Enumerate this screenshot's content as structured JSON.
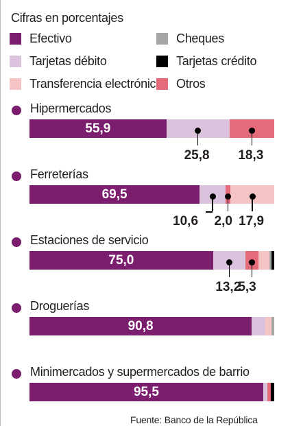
{
  "subtitle": "Cifras en porcentajes",
  "source": "Fuente: Banco de la República",
  "legend": [
    {
      "label": "Efectivo",
      "color": "#7a1e6d"
    },
    {
      "label": "Cheques",
      "color": "#a7a7a7"
    },
    {
      "label": "Tarjetas débito",
      "color": "#dcc3dd"
    },
    {
      "label": "Tarjetas crédito",
      "color": "#000000"
    },
    {
      "label": "Transferencia electrónica",
      "color": "#f5c5c6"
    },
    {
      "label": "Otros",
      "color": "#e56b7a"
    }
  ],
  "chart_data": {
    "type": "bar",
    "stacked": true,
    "orientation": "horizontal",
    "unit": "%",
    "xlim": [
      0,
      100
    ],
    "series_order": [
      "Efectivo",
      "Tarjetas débito",
      "Tarjetas crédito",
      "Cheques",
      "Transferencia electrónica",
      "Otros"
    ],
    "colors": {
      "Efectivo": "#7a1e6d",
      "Tarjetas débito": "#dcc3dd",
      "Tarjetas crédito": "#000000",
      "Cheques": "#a7a7a7",
      "Transferencia electrónica": "#f5c5c6",
      "Otros": "#e56b7a"
    },
    "categories": [
      {
        "name": "Hipermercados",
        "label": "55,9",
        "segments": [
          {
            "series": "Efectivo",
            "value": 55.9
          },
          {
            "series": "Tarjetas débito",
            "value": 25.8,
            "label": "25,8"
          },
          {
            "series": "Otros",
            "value": 18.3,
            "label": "18,3"
          }
        ]
      },
      {
        "name": "Ferreterías",
        "label": "69,5",
        "segments": [
          {
            "series": "Efectivo",
            "value": 69.5
          },
          {
            "series": "Tarjetas débito",
            "value": 10.6,
            "label": "10,6"
          },
          {
            "series": "Otros",
            "value": 2.0,
            "label": "2,0"
          },
          {
            "series": "Transferencia electrónica",
            "value": 17.9,
            "label": "17,9"
          }
        ]
      },
      {
        "name": "Estaciones de servicio",
        "label": "75,0",
        "segments": [
          {
            "series": "Efectivo",
            "value": 75.0
          },
          {
            "series": "Tarjetas débito",
            "value": 13.2,
            "label": "13,2"
          },
          {
            "series": "Otros",
            "value": 5.3,
            "label": "5,3"
          },
          {
            "series": "Transferencia electrónica",
            "value": 4.5
          },
          {
            "series": "Cheques",
            "value": 1.0
          },
          {
            "series": "Tarjetas crédito",
            "value": 1.0
          }
        ]
      },
      {
        "name": "Droguerías",
        "label": "90,8",
        "segments": [
          {
            "series": "Efectivo",
            "value": 90.8
          },
          {
            "series": "Tarjetas débito",
            "value": 5.5
          },
          {
            "series": "Transferencia electrónica",
            "value": 2.7
          },
          {
            "series": "Cheques",
            "value": 1.0
          }
        ]
      },
      {
        "name": "Minimercados y supermercados de barrio",
        "label": "95,5",
        "segments": [
          {
            "series": "Efectivo",
            "value": 95.5
          },
          {
            "series": "Tarjetas débito",
            "value": 1.8
          },
          {
            "series": "Otros",
            "value": 1.2
          },
          {
            "series": "Tarjetas crédito",
            "value": 1.5
          }
        ]
      }
    ]
  }
}
